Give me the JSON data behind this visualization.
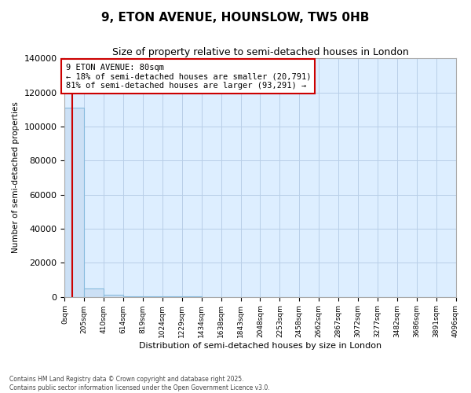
{
  "title": "9, ETON AVENUE, HOUNSLOW, TW5 0HB",
  "subtitle": "Size of property relative to semi-detached houses in London",
  "xlabel": "Distribution of semi-detached houses by size in London",
  "ylabel": "Number of semi-detached properties",
  "property_size": 80,
  "property_label": "9 ETON AVENUE: 80sqm",
  "annotation_smaller": "← 18% of semi-detached houses are smaller (20,791)",
  "annotation_larger": "81% of semi-detached houses are larger (93,291) →",
  "bar_edges": [
    0,
    205,
    410,
    614,
    819,
    1024,
    1229,
    1434,
    1638,
    1843,
    2048,
    2253,
    2458,
    2662,
    2867,
    3072,
    3277,
    3482,
    3686,
    3891,
    4096
  ],
  "bar_heights": [
    111000,
    5000,
    1200,
    500,
    200,
    100,
    60,
    40,
    25,
    15,
    10,
    7,
    5,
    4,
    3,
    2,
    2,
    1,
    1,
    1
  ],
  "bar_color": "#cce0f5",
  "bar_edgecolor": "#88bbdd",
  "red_line_color": "#cc0000",
  "annotation_box_edgecolor": "#cc0000",
  "annotation_box_facecolor": "#ffffff",
  "plot_bg_color": "#ddeeff",
  "fig_bg_color": "#ffffff",
  "grid_color": "#b8cfe8",
  "ylim": [
    0,
    140000
  ],
  "yticks": [
    0,
    20000,
    40000,
    60000,
    80000,
    100000,
    120000,
    140000
  ],
  "footer": "Contains HM Land Registry data © Crown copyright and database right 2025.\nContains public sector information licensed under the Open Government Licence v3.0.",
  "tick_labels": [
    "0sqm",
    "205sqm",
    "410sqm",
    "614sqm",
    "819sqm",
    "1024sqm",
    "1229sqm",
    "1434sqm",
    "1638sqm",
    "1843sqm",
    "2048sqm",
    "2253sqm",
    "2458sqm",
    "2662sqm",
    "2867sqm",
    "3072sqm",
    "3277sqm",
    "3482sqm",
    "3686sqm",
    "3891sqm",
    "4096sqm"
  ]
}
